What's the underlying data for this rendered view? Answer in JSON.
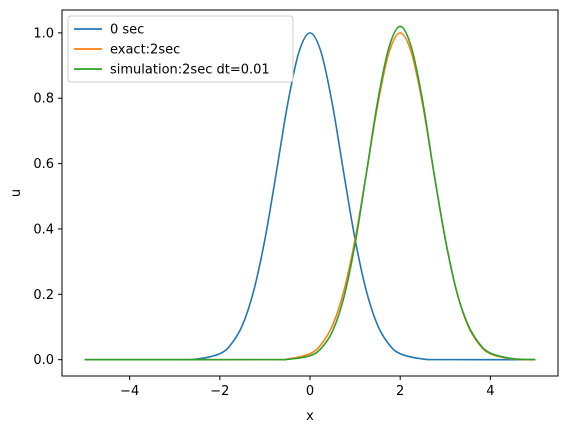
{
  "chart_data": {
    "type": "line",
    "xlabel": "x",
    "ylabel": "u",
    "xlim": [
      -5.5,
      5.5
    ],
    "ylim": [
      -0.05,
      1.07
    ],
    "x_ticks": [
      -4,
      -2,
      0,
      2,
      4
    ],
    "x_tick_labels": [
      "−4",
      "−2",
      "0",
      "2",
      "4"
    ],
    "y_ticks": [
      0.0,
      0.2,
      0.4,
      0.6,
      0.8,
      1.0
    ],
    "y_tick_labels": [
      "0.0",
      "0.2",
      "0.4",
      "0.6",
      "0.8",
      "1.0"
    ],
    "grid": false,
    "legend_position": "top-left",
    "series": [
      {
        "name": "0 sec",
        "color": "#1f77b4",
        "points": [
          [
            -5,
            0
          ],
          [
            -3,
            0.0001
          ],
          [
            -2.5,
            0.002
          ],
          [
            -2,
            0.018
          ],
          [
            -1.75,
            0.047
          ],
          [
            -1.5,
            0.105
          ],
          [
            -1.25,
            0.21
          ],
          [
            -1,
            0.368
          ],
          [
            -0.75,
            0.57
          ],
          [
            -0.5,
            0.779
          ],
          [
            -0.25,
            0.939
          ],
          [
            0,
            1.0
          ],
          [
            0.25,
            0.939
          ],
          [
            0.5,
            0.779
          ],
          [
            0.75,
            0.57
          ],
          [
            1,
            0.368
          ],
          [
            1.25,
            0.21
          ],
          [
            1.5,
            0.105
          ],
          [
            1.75,
            0.047
          ],
          [
            2,
            0.018
          ],
          [
            2.5,
            0.002
          ],
          [
            3,
            0.0001
          ],
          [
            5,
            0
          ]
        ]
      },
      {
        "name": "exact:2sec",
        "color": "#ff7f0e",
        "points": [
          [
            -5,
            0
          ],
          [
            -1,
            0.0001
          ],
          [
            -0.5,
            0.002
          ],
          [
            0,
            0.018
          ],
          [
            0.25,
            0.047
          ],
          [
            0.5,
            0.105
          ],
          [
            0.75,
            0.21
          ],
          [
            1,
            0.368
          ],
          [
            1.25,
            0.57
          ],
          [
            1.5,
            0.779
          ],
          [
            1.75,
            0.939
          ],
          [
            2,
            1.0
          ],
          [
            2.25,
            0.939
          ],
          [
            2.5,
            0.779
          ],
          [
            2.75,
            0.57
          ],
          [
            3,
            0.368
          ],
          [
            3.25,
            0.21
          ],
          [
            3.5,
            0.105
          ],
          [
            3.75,
            0.047
          ],
          [
            4,
            0.018
          ],
          [
            4.5,
            0.002
          ],
          [
            5,
            0.0001
          ]
        ]
      },
      {
        "name": "simulation:2sec dt=0.01",
        "color": "#2ca02c",
        "points": [
          [
            -5,
            0
          ],
          [
            -1,
            0.0001
          ],
          [
            -0.5,
            0.001
          ],
          [
            0,
            0.012
          ],
          [
            0.25,
            0.035
          ],
          [
            0.5,
            0.087
          ],
          [
            0.75,
            0.19
          ],
          [
            1,
            0.355
          ],
          [
            1.25,
            0.57
          ],
          [
            1.5,
            0.79
          ],
          [
            1.75,
            0.955
          ],
          [
            2,
            1.02
          ],
          [
            2.25,
            0.955
          ],
          [
            2.5,
            0.79
          ],
          [
            2.75,
            0.57
          ],
          [
            3,
            0.37
          ],
          [
            3.25,
            0.21
          ],
          [
            3.5,
            0.108
          ],
          [
            3.75,
            0.05
          ],
          [
            4,
            0.02
          ],
          [
            4.5,
            0.003
          ],
          [
            5,
            0.0002
          ]
        ]
      }
    ]
  }
}
